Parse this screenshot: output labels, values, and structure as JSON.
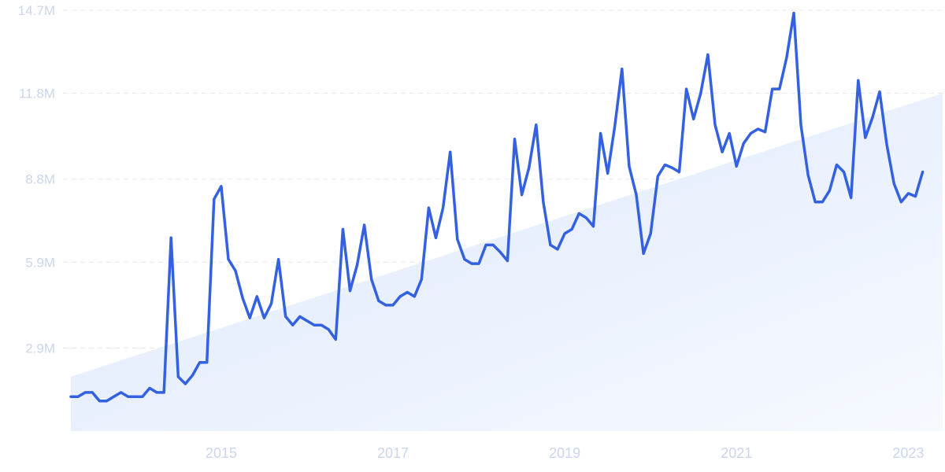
{
  "chart_data": {
    "type": "line",
    "title": "",
    "xlabel": "",
    "ylabel": "",
    "grid": true,
    "legend": "none",
    "xlim": [
      2013.25,
      2023.4
    ],
    "ylim": [
      0,
      14.7
    ],
    "y_ticks": [
      {
        "value": 2.9,
        "label": "2.9M"
      },
      {
        "value": 5.9,
        "label": "5.9M"
      },
      {
        "value": 8.8,
        "label": "8.8M"
      },
      {
        "value": 11.8,
        "label": "11.8M"
      },
      {
        "value": 14.7,
        "label": "14.7M"
      }
    ],
    "x_ticks": [
      {
        "value": 2015,
        "label": "2015"
      },
      {
        "value": 2017,
        "label": "2017"
      },
      {
        "value": 2019,
        "label": "2019"
      },
      {
        "value": 2021,
        "label": "2021"
      },
      {
        "value": 2023,
        "label": "2023"
      }
    ],
    "colors": {
      "line": "#3461e0",
      "trend_fill_top": "#dde8fb",
      "trend_fill_bottom": "#f6f9ff",
      "grid": "#e3e7f1",
      "tick_text": "#cbd5ee"
    },
    "series": [
      {
        "start": "2013-04",
        "interval": "month",
        "unit": "M",
        "values": [
          1.2,
          1.2,
          1.35,
          1.35,
          1.05,
          1.05,
          1.2,
          1.35,
          1.2,
          1.2,
          1.2,
          1.5,
          1.35,
          1.35,
          6.75,
          1.9,
          1.65,
          1.95,
          2.4,
          2.4,
          8.1,
          8.55,
          6.0,
          5.6,
          4.65,
          3.95,
          4.7,
          3.95,
          4.45,
          6.0,
          4.0,
          3.7,
          4.0,
          3.85,
          3.7,
          3.7,
          3.55,
          3.2,
          7.05,
          4.9,
          5.8,
          7.2,
          5.3,
          4.55,
          4.4,
          4.4,
          4.7,
          4.85,
          4.7,
          5.3,
          7.8,
          6.75,
          7.8,
          9.75,
          6.7,
          6.0,
          5.85,
          5.85,
          6.5,
          6.5,
          6.25,
          5.95,
          10.2,
          8.25,
          9.2,
          10.7,
          8.0,
          6.5,
          6.35,
          6.9,
          7.05,
          7.6,
          7.45,
          7.15,
          10.4,
          9.0,
          10.65,
          12.65,
          9.25,
          8.25,
          6.2,
          6.9,
          8.9,
          9.3,
          9.2,
          9.05,
          11.95,
          10.9,
          11.8,
          13.15,
          10.7,
          9.75,
          10.4,
          9.25,
          10.05,
          10.4,
          10.55,
          10.45,
          11.95,
          11.95,
          13.05,
          14.6,
          10.7,
          8.95,
          8.0,
          8.0,
          8.4,
          9.3,
          9.05,
          8.15,
          12.25,
          10.25,
          10.95,
          11.85,
          10.0,
          8.65,
          8.0,
          8.3,
          8.2,
          9.05
        ]
      }
    ],
    "trend_band": {
      "start_value": 1.9,
      "end_value": 11.8
    }
  }
}
